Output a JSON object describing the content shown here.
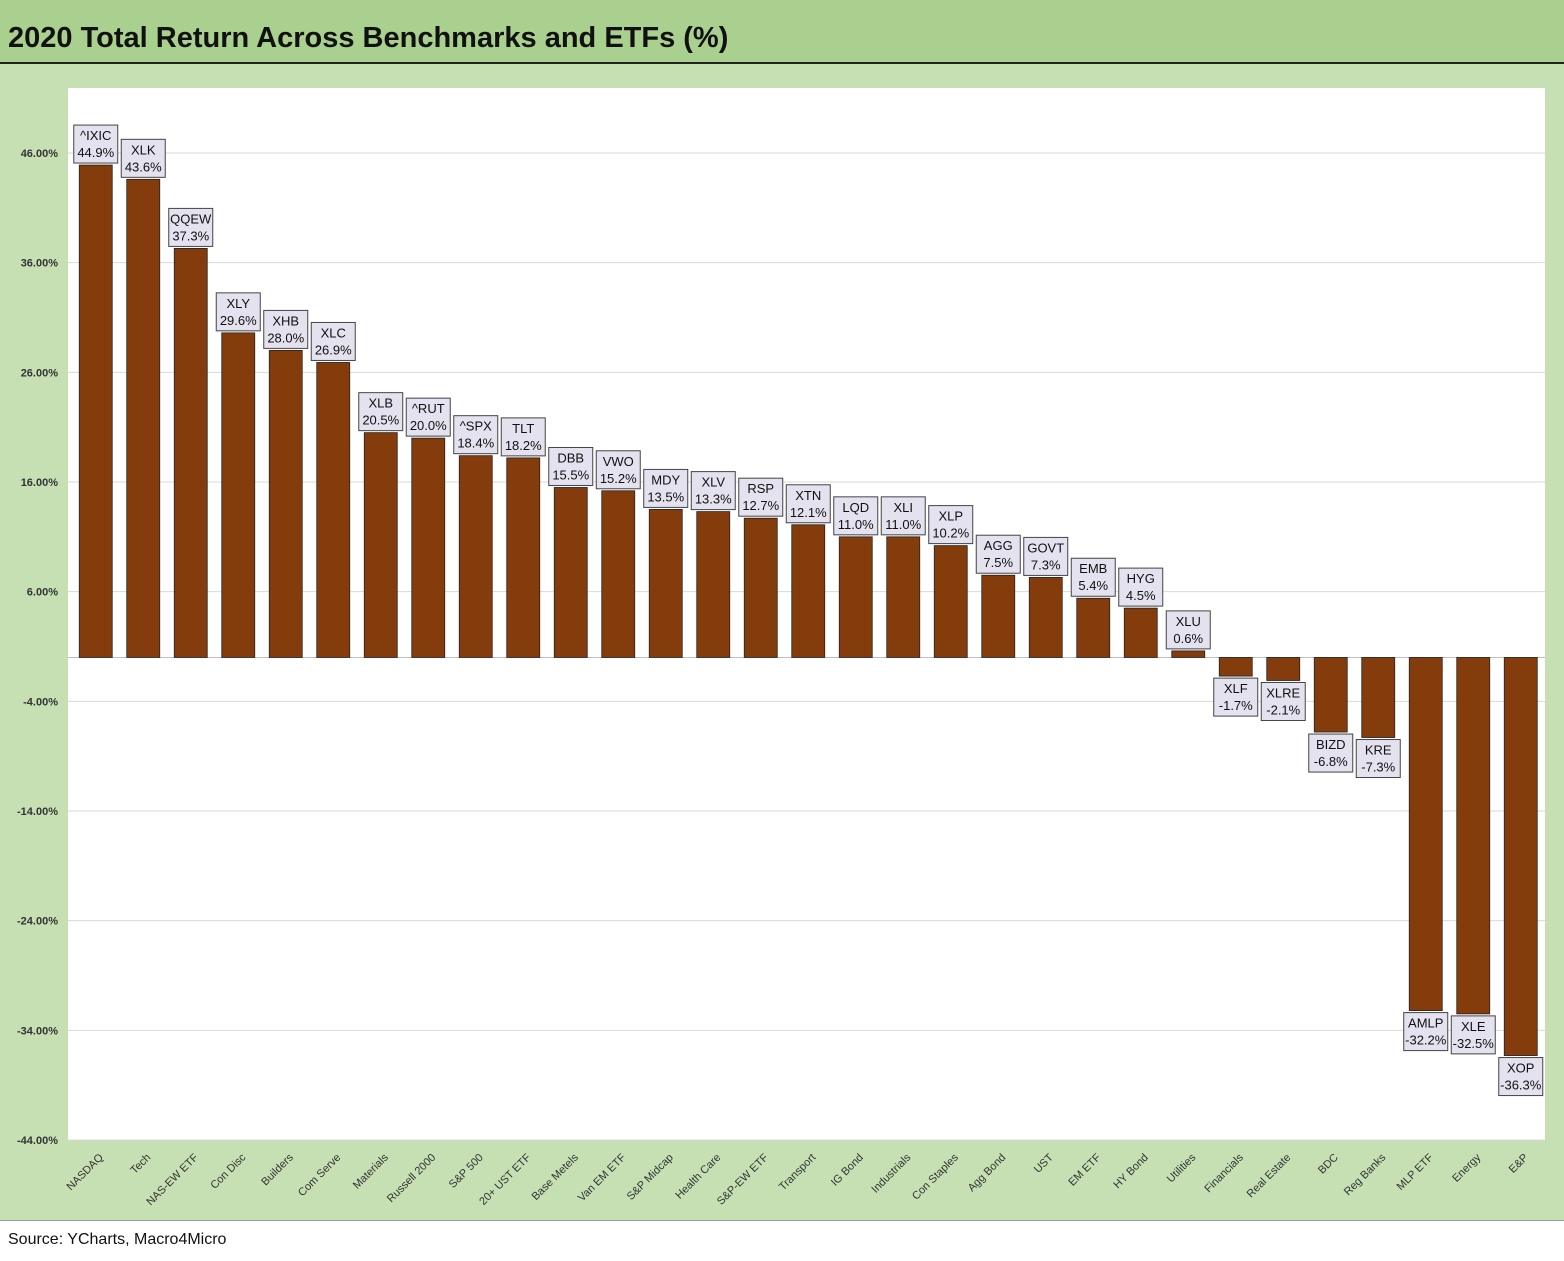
{
  "title": "2020 Total Return Across Benchmarks and ETFs (%)",
  "source": "Source: YCharts, Macro4Micro",
  "colors": {
    "bar": "#843c0c",
    "frame": "#c6e0b4",
    "title_band": "#a9d08e",
    "label_box": "#e4e2ee",
    "gridline": "#d9d9d9"
  },
  "chart_data": {
    "type": "bar",
    "title": "2020 Total Return Across Benchmarks and ETFs (%)",
    "xlabel": "",
    "ylabel": "",
    "ylim": [
      -44,
      52
    ],
    "yticks": [
      46,
      36,
      26,
      16,
      6,
      -4,
      -14,
      -24,
      -34,
      -44
    ],
    "ytick_labels": [
      "46.00%",
      "36.00%",
      "26.00%",
      "16.00%",
      "6.00%",
      "-4.00%",
      "-14.00%",
      "-24.00%",
      "-34.00%",
      "-44.00%"
    ],
    "grid": true,
    "categories": [
      "NASDAQ",
      "Tech",
      "NAS-EW ETF",
      "Con Disc",
      "Builders",
      "Com Serve",
      "Materials",
      "Russell 2000",
      "S&P 500",
      "20+ UST ETF",
      "Base Metels",
      "Van EM ETF",
      "S&P Midcap",
      "Health Care",
      "S&P-EW ETF",
      "Transport",
      "IG Bond",
      "Industrials",
      "Con Staples",
      "Agg Bond",
      "UST",
      "EM ETF",
      "HY Bond",
      "Utilities",
      "Financials",
      "Real Estate",
      "BDC",
      "Reg Banks",
      "MLP ETF",
      "Energy",
      "E&P"
    ],
    "tickers": [
      "^IXIC",
      "XLK",
      "QQEW",
      "XLY",
      "XHB",
      "XLC",
      "XLB",
      "^RUT",
      "^SPX",
      "TLT",
      "DBB",
      "VWO",
      "MDY",
      "XLV",
      "RSP",
      "XTN",
      "LQD",
      "XLI",
      "XLP",
      "AGG",
      "GOVT",
      "EMB",
      "HYG",
      "XLU",
      "XLF",
      "XLRE",
      "BIZD",
      "KRE",
      "AMLP",
      "XLE",
      "XOP"
    ],
    "values": [
      44.9,
      43.6,
      37.3,
      29.6,
      28.0,
      26.9,
      20.5,
      20.0,
      18.4,
      18.2,
      15.5,
      15.2,
      13.5,
      13.3,
      12.7,
      12.1,
      11.0,
      11.0,
      10.2,
      7.5,
      7.3,
      5.4,
      4.5,
      0.6,
      -1.7,
      -2.1,
      -6.8,
      -7.3,
      -32.2,
      -32.5,
      -36.3
    ],
    "value_labels": [
      "44.9%",
      "43.6%",
      "37.3%",
      "29.6%",
      "28.0%",
      "26.9%",
      "20.5%",
      "20.0%",
      "18.4%",
      "18.2%",
      "15.5%",
      "15.2%",
      "13.5%",
      "13.3%",
      "12.7%",
      "12.1%",
      "11.0%",
      "11.0%",
      "10.2%",
      "7.5%",
      "7.3%",
      "5.4%",
      "4.5%",
      "0.6%",
      "-1.7%",
      "-2.1%",
      "-6.8%",
      "-7.3%",
      "-32.2%",
      "-32.5%",
      "-36.3%"
    ]
  }
}
